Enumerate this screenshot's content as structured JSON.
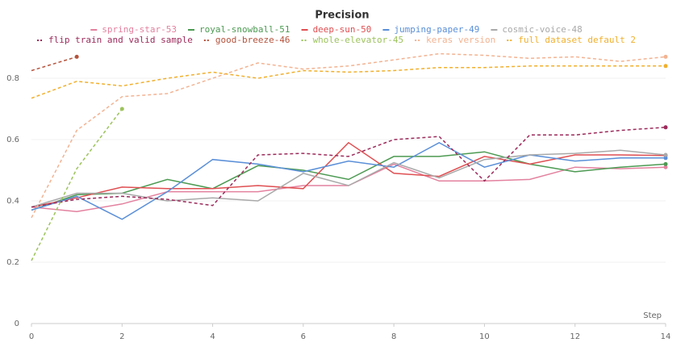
{
  "chart_data": {
    "type": "line",
    "title": "Precision",
    "x_label": "Step",
    "x": [
      0,
      1,
      2,
      3,
      4,
      5,
      6,
      7,
      8,
      9,
      10,
      11,
      12,
      13,
      14
    ],
    "xlim": [
      0,
      14
    ],
    "xticks": [
      0,
      2,
      4,
      6,
      8,
      10,
      12,
      14
    ],
    "ylim": [
      0,
      0.9
    ],
    "yticks": [
      0,
      0.2,
      0.4,
      0.6,
      0.8
    ],
    "grid": true,
    "series": [
      {
        "name": "spring-star-53",
        "color": "#e3819f",
        "dashed": false,
        "values": [
          0.38,
          0.365,
          0.39,
          0.43,
          0.43,
          0.43,
          0.45,
          0.45,
          0.52,
          0.465,
          0.465,
          0.47,
          0.51,
          0.505,
          0.51
        ]
      },
      {
        "name": "royal-snowball-51",
        "color": "#4c9a52",
        "dashed": false,
        "values": [
          0.37,
          0.42,
          0.425,
          0.47,
          0.44,
          0.515,
          0.5,
          0.47,
          0.545,
          0.545,
          0.56,
          0.52,
          0.495,
          0.51,
          0.52
        ]
      },
      {
        "name": "deep-sun-50",
        "color": "#df4f52",
        "dashed": false,
        "values": [
          0.38,
          0.41,
          0.445,
          0.44,
          0.44,
          0.45,
          0.44,
          0.59,
          0.49,
          0.48,
          0.545,
          0.52,
          0.55,
          0.55,
          0.548
        ]
      },
      {
        "name": "jumping-paper-49",
        "color": "#5a8fd8",
        "dashed": false,
        "values": [
          0.37,
          0.415,
          0.34,
          0.43,
          0.535,
          0.52,
          0.495,
          0.53,
          0.51,
          0.59,
          0.51,
          0.55,
          0.53,
          0.54,
          0.54
        ]
      },
      {
        "name": "cosmic-voice-48",
        "color": "#a9a9a9",
        "dashed": false,
        "values": [
          0.38,
          0.425,
          0.425,
          0.4,
          0.41,
          0.4,
          0.49,
          0.45,
          0.525,
          0.475,
          0.535,
          0.55,
          0.555,
          0.565,
          0.55
        ]
      },
      {
        "name": "flip train and valid sample",
        "color": "#9c2b5b",
        "dashed": true,
        "values": [
          0.38,
          0.405,
          0.415,
          0.405,
          0.385,
          0.55,
          0.555,
          0.545,
          0.6,
          0.61,
          0.465,
          0.615,
          0.615,
          0.63,
          0.64
        ]
      },
      {
        "name": "good-breeze-46",
        "color": "#b5533c",
        "dashed": true,
        "values": [
          0.825,
          0.87,
          null,
          null,
          null,
          null,
          null,
          null,
          null,
          null,
          null,
          null,
          null,
          null,
          null
        ]
      },
      {
        "name": "whole-elevator-45",
        "color": "#9cc35c",
        "dashed": true,
        "values": [
          0.205,
          0.505,
          0.7,
          null,
          null,
          null,
          null,
          null,
          null,
          null,
          null,
          null,
          null,
          null,
          null
        ]
      },
      {
        "name": "keras version",
        "color": "#f2b392",
        "dashed": true,
        "values": [
          0.345,
          0.63,
          0.74,
          0.75,
          0.8,
          0.85,
          0.83,
          0.84,
          0.86,
          0.88,
          0.875,
          0.865,
          0.87,
          0.855,
          0.87
        ]
      },
      {
        "name": "full dataset default 2",
        "color": "#f0b02e",
        "dashed": true,
        "values": [
          0.735,
          0.79,
          0.775,
          0.8,
          0.82,
          0.8,
          0.825,
          0.82,
          0.825,
          0.835,
          0.835,
          0.84,
          0.84,
          0.84,
          0.84
        ]
      }
    ]
  }
}
